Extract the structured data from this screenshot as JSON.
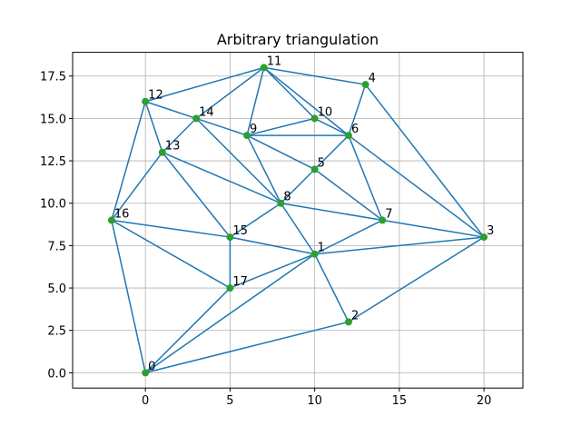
{
  "chart_data": {
    "type": "triangulation",
    "title": "Arbitrary triangulation",
    "x": [
      0,
      10,
      12,
      20,
      13,
      10,
      12,
      14,
      8,
      6,
      10,
      7,
      0,
      1,
      3,
      5,
      -2,
      5
    ],
    "y": [
      0,
      7,
      3,
      8,
      17,
      12,
      14,
      9,
      10,
      14,
      15,
      18,
      16,
      13,
      15,
      8,
      9,
      5
    ],
    "point_labels": [
      "0",
      "1",
      "2",
      "3",
      "4",
      "5",
      "6",
      "7",
      "8",
      "9",
      "10",
      "11",
      "12",
      "13",
      "14",
      "15",
      "16",
      "17"
    ],
    "edges": [
      [
        0,
        16
      ],
      [
        0,
        17
      ],
      [
        0,
        1
      ],
      [
        0,
        2
      ],
      [
        16,
        12
      ],
      [
        16,
        13
      ],
      [
        16,
        15
      ],
      [
        16,
        17
      ],
      [
        12,
        11
      ],
      [
        12,
        14
      ],
      [
        12,
        13
      ],
      [
        13,
        14
      ],
      [
        13,
        15
      ],
      [
        13,
        8
      ],
      [
        14,
        11
      ],
      [
        14,
        9
      ],
      [
        14,
        8
      ],
      [
        15,
        17
      ],
      [
        15,
        1
      ],
      [
        15,
        8
      ],
      [
        17,
        1
      ],
      [
        1,
        2
      ],
      [
        1,
        3
      ],
      [
        1,
        7
      ],
      [
        1,
        8
      ],
      [
        2,
        3
      ],
      [
        3,
        4
      ],
      [
        3,
        6
      ],
      [
        3,
        7
      ],
      [
        4,
        11
      ],
      [
        4,
        6
      ],
      [
        11,
        10
      ],
      [
        11,
        6
      ],
      [
        11,
        9
      ],
      [
        10,
        9
      ],
      [
        10,
        6
      ],
      [
        9,
        6
      ],
      [
        9,
        5
      ],
      [
        9,
        8
      ],
      [
        6,
        5
      ],
      [
        6,
        7
      ],
      [
        5,
        8
      ],
      [
        5,
        7
      ],
      [
        8,
        7
      ]
    ],
    "line_color": "#1f77b4",
    "point_color": "#2ca02c",
    "xlim": [
      -4.3,
      22.3
    ],
    "xticks": [
      0,
      5,
      10,
      15,
      20
    ],
    "ylim": [
      -0.9,
      18.9
    ],
    "yticks": [
      {
        "value": 0,
        "label": "0.0"
      },
      2.5,
      {
        "value": 5,
        "label": "5.0"
      },
      7.5,
      {
        "value": 10,
        "label": "10.0"
      },
      12.5,
      {
        "value": 15,
        "label": "15.0"
      },
      17.5
    ],
    "grid": true
  }
}
